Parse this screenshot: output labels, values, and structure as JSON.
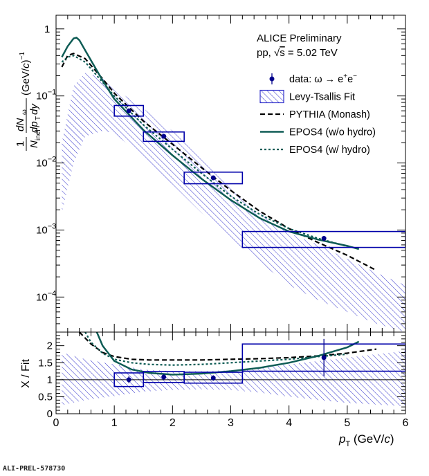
{
  "chart_data": [
    {
      "type": "scatter",
      "panel": "top",
      "title": "ALICE Preliminary",
      "subtitle_prefix": "pp, ",
      "subtitle_sqrt": "s",
      "subtitle_suffix": " = 5.02 TeV",
      "ylabel": {
        "frac1_num": "1",
        "frac1_den": "N",
        "frac1_den_sub": "inel",
        "frac2_num": "dN",
        "frac2_num_sub": "ω",
        "frac2_den_a": "dp",
        "frac2_den_sub": "T",
        "frac2_den_b": "dy",
        "unit": "(GeV/",
        "unit_c": "c",
        "unit_tail": ")",
        "unit_exp": "−1"
      },
      "yscale": "log",
      "ylim": [
        3e-05,
        1.6
      ],
      "xlim": [
        0,
        6
      ],
      "ytick_labels": [
        {
          "v": 0.0001,
          "base": "10",
          "exp": "−4"
        },
        {
          "v": 0.001,
          "base": "10",
          "exp": "−3"
        },
        {
          "v": 0.01,
          "base": "10",
          "exp": "−2"
        },
        {
          "v": 0.1,
          "base": "10",
          "exp": "−1"
        },
        {
          "v": 1,
          "base": "1",
          "exp": ""
        }
      ],
      "legend": [
        {
          "label": "data: ω → e",
          "sup1": "+",
          "mid": "e",
          "sup2": "−",
          "style": "marker",
          "color": "#00008b"
        },
        {
          "label": "Levy-Tsallis Fit",
          "style": "hatched",
          "color": "#3333cc"
        },
        {
          "label": "PYTHIA (Monash)",
          "style": "dashed",
          "color": "#000000"
        },
        {
          "label": "EPOS4 (w/o hydro)",
          "style": "solid",
          "color": "#0e5c55"
        },
        {
          "label": "EPOS4 (w/ hydro)",
          "style": "dotted",
          "color": "#0e5c55"
        }
      ],
      "legend_position": "top-right",
      "data_points": [
        {
          "x": 1.25,
          "y": 0.06,
          "xlo": 1.0,
          "xhi": 1.5,
          "sys_lo": 0.05,
          "sys_hi": 0.072
        },
        {
          "x": 1.85,
          "y": 0.025,
          "xlo": 1.5,
          "xhi": 2.2,
          "sys_lo": 0.021,
          "sys_hi": 0.029
        },
        {
          "x": 2.7,
          "y": 0.006,
          "xlo": 2.2,
          "xhi": 3.2,
          "sys_lo": 0.0049,
          "sys_hi": 0.0073
        },
        {
          "x": 4.6,
          "y": 0.00075,
          "xlo": 3.2,
          "xhi": 6.0,
          "sys_lo": 0.00055,
          "sys_hi": 0.00095
        }
      ],
      "fit_band": {
        "x": [
          0.1,
          0.3,
          0.5,
          0.8,
          1.0,
          1.5,
          2.0,
          2.5,
          3.0,
          3.5,
          4.0,
          4.5,
          5.0,
          5.5,
          6.0
        ],
        "lo": [
          0.0018,
          0.01,
          0.025,
          0.03,
          0.028,
          0.012,
          0.0048,
          0.0018,
          0.00075,
          0.00033,
          0.00015,
          9e-05,
          6e-05,
          4e-05,
          3e-05
        ],
        "hi": [
          0.02,
          0.14,
          0.22,
          0.19,
          0.13,
          0.065,
          0.03,
          0.012,
          0.0045,
          0.0018,
          0.0009,
          0.0006,
          0.00037,
          0.00023,
          0.00015
        ]
      },
      "series": [
        {
          "name": "PYTHIA (Monash)",
          "style": "dashed",
          "color": "#000000",
          "x": [
            0.1,
            0.2,
            0.3,
            0.5,
            0.8,
            1.0,
            1.5,
            2.0,
            2.5,
            3.0,
            3.5,
            4.0,
            4.5,
            5.0,
            5.5
          ],
          "y": [
            0.27,
            0.4,
            0.43,
            0.36,
            0.18,
            0.11,
            0.042,
            0.019,
            0.0085,
            0.0039,
            0.0019,
            0.00105,
            0.00065,
            0.00042,
            0.00025
          ]
        },
        {
          "name": "EPOS4 (w/o hydro)",
          "style": "solid",
          "color": "#0e5c55",
          "x": [
            0.1,
            0.2,
            0.3,
            0.35,
            0.4,
            0.5,
            0.8,
            1.0,
            1.5,
            2.0,
            2.5,
            3.0,
            3.5,
            4.0,
            4.5,
            5.0,
            5.2
          ],
          "y": [
            0.38,
            0.55,
            0.72,
            0.74,
            0.68,
            0.48,
            0.17,
            0.09,
            0.031,
            0.013,
            0.0058,
            0.0028,
            0.0015,
            0.00095,
            0.00072,
            0.00058,
            0.00052
          ]
        },
        {
          "name": "EPOS4 (w/ hydro)",
          "style": "dotted",
          "color": "#0e5c55",
          "x": [
            0.1,
            0.2,
            0.3,
            0.5,
            0.8,
            1.0,
            1.5,
            2.0,
            2.5,
            3.0,
            3.5,
            4.0,
            4.5,
            5.0
          ],
          "y": [
            0.32,
            0.38,
            0.4,
            0.32,
            0.16,
            0.1,
            0.037,
            0.016,
            0.007,
            0.0032,
            0.0017,
            0.00105,
            0.00075,
            0.00057
          ]
        }
      ]
    },
    {
      "type": "scatter",
      "panel": "ratio",
      "ylabel": "X / Fit",
      "xlabel_p": "p",
      "xlabel_sub": "T",
      "xlabel_unit": " (GeV/",
      "xlabel_c": "c",
      "xlabel_tail": ")",
      "xlim": [
        0,
        6
      ],
      "ylim": [
        0,
        2.4
      ],
      "xticks": [
        0,
        1,
        2,
        3,
        4,
        5,
        6
      ],
      "xtick_labels": [
        "0",
        "1",
        "2",
        "3",
        "4",
        "5",
        "6"
      ],
      "yticks": [
        0,
        0.5,
        1,
        1.5,
        2
      ],
      "ytick_labels": [
        "0",
        "0.5",
        "1",
        "1.5",
        "2"
      ],
      "reference_line": 1,
      "data_points": [
        {
          "x": 1.25,
          "y": 1.0,
          "err": 0.1,
          "xlo": 1.0,
          "xhi": 1.5,
          "sys_lo": 0.8,
          "sys_hi": 1.2
        },
        {
          "x": 1.85,
          "y": 1.08,
          "err": 0.08,
          "xlo": 1.5,
          "xhi": 2.2,
          "sys_lo": 0.92,
          "sys_hi": 1.24
        },
        {
          "x": 2.7,
          "y": 1.05,
          "err": 0.08,
          "xlo": 2.2,
          "xhi": 3.2,
          "sys_lo": 0.9,
          "sys_hi": 1.22
        },
        {
          "x": 4.6,
          "y": 1.65,
          "err": 0.55,
          "xlo": 3.2,
          "xhi": 6.0,
          "sys_lo": 1.25,
          "sys_hi": 2.05
        }
      ],
      "fit_band": {
        "x": [
          0.1,
          0.5,
          1.0,
          1.5,
          2.0,
          2.5,
          3.0,
          3.5,
          4.0,
          4.5,
          5.0,
          5.5,
          6.0
        ],
        "lo": [
          0.25,
          0.4,
          0.52,
          0.65,
          0.7,
          0.72,
          0.7,
          0.62,
          0.5,
          0.4,
          0.32,
          0.27,
          0.22
        ],
        "hi": [
          1.8,
          1.6,
          1.45,
          1.3,
          1.25,
          1.25,
          1.28,
          1.35,
          1.45,
          1.55,
          1.65,
          1.75,
          1.85
        ]
      },
      "series": [
        {
          "name": "PYTHIA (Monash)",
          "style": "dashed",
          "color": "#000000",
          "x": [
            0.4,
            0.6,
            0.8,
            1.0,
            1.3,
            1.6,
            2.0,
            2.5,
            3.0,
            3.5,
            4.0,
            4.5,
            5.0,
            5.5
          ],
          "y": [
            2.4,
            2.05,
            1.8,
            1.68,
            1.6,
            1.58,
            1.58,
            1.58,
            1.6,
            1.62,
            1.65,
            1.7,
            1.78,
            1.9
          ]
        },
        {
          "name": "EPOS4 (w/o hydro)",
          "style": "solid",
          "color": "#0e5c55",
          "x": [
            0.7,
            0.8,
            1.0,
            1.3,
            1.6,
            2.0,
            2.5,
            3.0,
            3.5,
            4.0,
            4.5,
            5.0,
            5.2
          ],
          "y": [
            2.4,
            2.0,
            1.55,
            1.3,
            1.2,
            1.15,
            1.18,
            1.25,
            1.35,
            1.5,
            1.7,
            1.95,
            2.12
          ]
        },
        {
          "name": "EPOS4 (w/ hydro)",
          "style": "dotted",
          "color": "#0e5c55",
          "x": [
            0.5,
            0.6,
            0.8,
            1.0,
            1.3,
            1.6,
            2.0,
            2.5,
            3.0,
            3.5,
            4.0,
            4.5,
            5.0
          ],
          "y": [
            2.4,
            2.1,
            1.78,
            1.6,
            1.5,
            1.45,
            1.43,
            1.45,
            1.5,
            1.55,
            1.6,
            1.68,
            1.75
          ]
        }
      ]
    }
  ],
  "footer": "ALI-PREL-578730"
}
